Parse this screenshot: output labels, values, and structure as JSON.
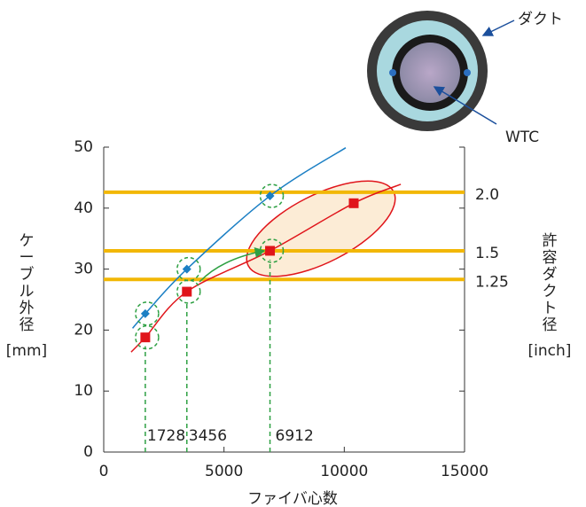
{
  "chart_data": {
    "type": "line",
    "x_label": "ファイバ心数",
    "y_label": "ケーブル外径",
    "y_unit": "[mm]",
    "y2_label": "許容ダクト径",
    "y2_unit": "[inch]",
    "xlim": [
      0,
      15000
    ],
    "xticks": [
      0,
      5000,
      10000,
      15000
    ],
    "ylim": [
      0,
      50
    ],
    "yticks": [
      0,
      10,
      20,
      30,
      40,
      50
    ],
    "grid": false,
    "duct_lines": {
      "color": "#f2b705",
      "values": [
        42.6,
        33,
        28.3
      ],
      "labels": [
        "2.0",
        "1.5",
        "1.25"
      ]
    },
    "markers": {
      "color": "#2ea043",
      "x": [
        1728,
        3456,
        6912
      ]
    },
    "series": [
      {
        "color": "#1b7fc4",
        "marker": "diamond",
        "x": [
          1728,
          3456,
          6912
        ],
        "values": [
          22.7,
          30,
          42
        ],
        "curve": {
          "x": [
            1200,
            1728,
            3456,
            6912,
            10060
          ],
          "y": [
            20.3,
            22.7,
            30,
            42,
            49.9
          ]
        }
      },
      {
        "color": "#e0151b",
        "marker": "square",
        "x": [
          1728,
          3456,
          6912,
          10393
        ],
        "values": [
          18.8,
          26.3,
          33,
          40.8
        ],
        "curve": {
          "x": [
            1140,
            1728,
            3456,
            6912,
            10393,
            12350
          ],
          "y": [
            16.4,
            18.8,
            26.3,
            33,
            40.8,
            43.9
          ]
        }
      }
    ],
    "annotations": {
      "duct": "ダクト",
      "wtc": "WTC"
    }
  }
}
